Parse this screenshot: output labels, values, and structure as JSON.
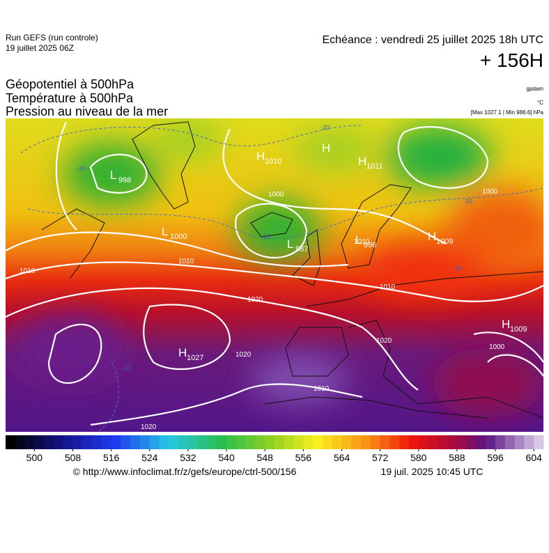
{
  "header": {
    "run": "Run GEFS (run controle)",
    "run_date": "19 juillet 2025 06Z",
    "valid": "Echéance : vendredi 25 juillet 2025 18h UTC",
    "lead": "+ 156H"
  },
  "titles": [
    "Géopotentiel à 500hPa",
    "Température à 500hPa",
    "Pression au niveau de la mer"
  ],
  "units": {
    "geopotential": "gpdam",
    "temperature": "°C",
    "pressure": "[Max 1027.1 | Min 986.6] hPa"
  },
  "centers": [
    {
      "letter": "L",
      "value": "998"
    },
    {
      "letter": "H",
      "value": "1010"
    },
    {
      "letter": "H",
      "value": ""
    },
    {
      "letter": "H",
      "value": "1011"
    },
    {
      "letter": "L",
      "value": "1000"
    },
    {
      "letter": "L",
      "value": "987"
    },
    {
      "letter": "L",
      "value": "996"
    },
    {
      "letter": "H",
      "value": "1009"
    },
    {
      "letter": "H",
      "value": "1009"
    },
    {
      "letter": "H",
      "value": "1027"
    }
  ],
  "isobar_labels": [
    "1010",
    "1020",
    "1010",
    "1020",
    "1010",
    "1020",
    "1000",
    "1010",
    "1000",
    "1000",
    "1010",
    "1020"
  ],
  "temperature_labels": [
    "-20",
    "-20",
    "-20",
    "-10",
    "-10",
    "-10"
  ],
  "colorbar": {
    "range": [
      494,
      606
    ],
    "ticks": [
      500,
      508,
      516,
      524,
      532,
      540,
      548,
      556,
      564,
      572,
      580,
      588,
      596,
      604
    ]
  },
  "footer": {
    "source": "© http://www.infoclimat.fr/z/gefs/europe/ctrl-500/156",
    "issued": "19 juil. 2025 10:45 UTC"
  }
}
